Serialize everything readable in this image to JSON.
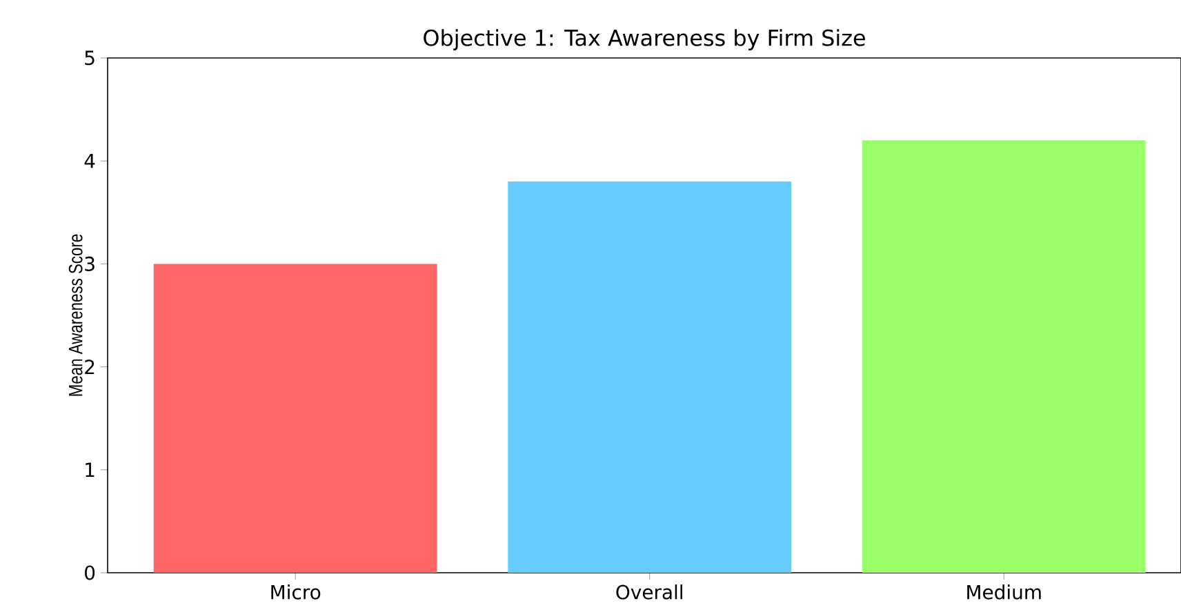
{
  "chart_data": {
    "type": "bar",
    "title": "Objective 1: Tax Awareness by Firm Size",
    "ylabel": "Mean Awareness Score",
    "categories": [
      "Micro",
      "Overall",
      "Medium"
    ],
    "values": [
      3.0,
      3.8,
      4.2
    ],
    "colors": [
      "#ff6666",
      "#66ccff",
      "#99ff66"
    ],
    "ylim": [
      0,
      5
    ],
    "yticks": [
      0,
      1,
      2,
      3,
      4,
      5
    ],
    "grid": false
  }
}
